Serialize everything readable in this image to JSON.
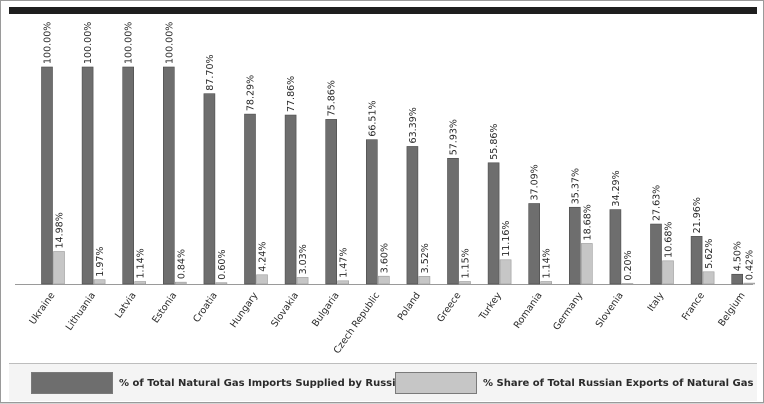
{
  "chart_data": {
    "type": "bar",
    "categories": [
      "Ukraine",
      "Lithuania",
      "Latvia",
      "Estonia",
      "Croatia",
      "Hungary",
      "Slovakia",
      "Bulgaria",
      "Czech Republic",
      "Poland",
      "Greece",
      "Turkey",
      "Romania",
      "Germany",
      "Slovenia",
      "Italy",
      "France",
      "Belgium"
    ],
    "series": [
      {
        "name": "% of Total Natural Gas Imports Supplied by Russia",
        "color": "#6e6e6e",
        "values": [
          100.0,
          100.0,
          100.0,
          100.0,
          87.7,
          78.29,
          77.86,
          75.86,
          66.51,
          63.39,
          57.93,
          55.86,
          37.09,
          35.37,
          34.29,
          27.63,
          21.96,
          4.5
        ],
        "labels": [
          "100.00%",
          "100.00%",
          "100.00%",
          "100.00%",
          "87.70%",
          "78.29%",
          "77.86%",
          "75.86%",
          "66.51%",
          "63.39%",
          "57.93%",
          "55.86%",
          "37.09%",
          "35.37%",
          "34.29%",
          "27.63%",
          "21.96%",
          "4.50%"
        ]
      },
      {
        "name": "% Share of Total Russian Exports of Natural Gas",
        "color": "#c6c6c6",
        "values": [
          14.98,
          1.97,
          1.14,
          0.84,
          0.6,
          4.24,
          3.03,
          1.47,
          3.6,
          3.52,
          1.15,
          11.16,
          1.14,
          18.68,
          0.2,
          10.68,
          5.62,
          0.42
        ],
        "labels": [
          "14.98%",
          "1.97%",
          "1.14%",
          "0.84%",
          "0.60%",
          "4.24%",
          "3.03%",
          "1.47%",
          "3.60%",
          "3.52%",
          "1.15%",
          "11.16%",
          "1.14%",
          "18.68%",
          "0.20%",
          "10.68%",
          "5.62%",
          "0.42%"
        ]
      }
    ],
    "ylim": [
      0,
      100
    ],
    "grid": false,
    "legend_position": "bottom",
    "title": "",
    "xlabel": "",
    "ylabel": ""
  }
}
